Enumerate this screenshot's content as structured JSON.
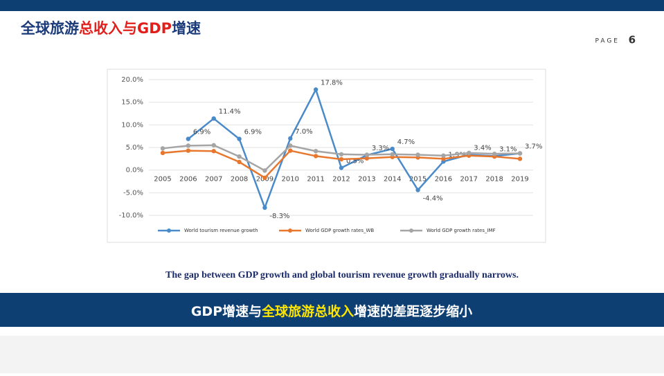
{
  "slide": {
    "title": [
      {
        "text": "全球旅游",
        "color": "#1a3a7a"
      },
      {
        "text": "总收入与GDP",
        "color": "#e0201c"
      },
      {
        "text": "增速",
        "color": "#1a3a7a"
      }
    ],
    "page_label": "PAGE",
    "page_number": "6",
    "caption": "The gap between GDP growth and global tourism revenue growth gradually narrows.",
    "banner": [
      {
        "text": "GDP增速与",
        "color": "#ffffff"
      },
      {
        "text": "全球旅游总收入",
        "color": "#ffe600"
      },
      {
        "text": "增速的差距逐步缩小",
        "color": "#ffffff"
      }
    ]
  },
  "chart_data": {
    "type": "line",
    "categories": [
      "2005",
      "2006",
      "2007",
      "2008",
      "2009",
      "2010",
      "2011",
      "2012",
      "2013",
      "2014",
      "2015",
      "2016",
      "2017",
      "2018",
      "2019"
    ],
    "ylim": [
      -10,
      20
    ],
    "yticks": [
      {
        "value": -10,
        "label": "-10.0%"
      },
      {
        "value": -5,
        "label": "-5.0%"
      },
      {
        "value": 0,
        "label": "0.0%"
      },
      {
        "value": 5,
        "label": "5.0%"
      },
      {
        "value": 10,
        "label": "10.0%"
      },
      {
        "value": 15,
        "label": "15.0%"
      },
      {
        "value": 20,
        "label": "20.0%"
      }
    ],
    "grid": true,
    "series": [
      {
        "name": "World tourism revenue growth",
        "color": "#4a8ac9",
        "values": [
          null,
          6.9,
          11.4,
          6.9,
          -8.3,
          7.0,
          17.8,
          0.5,
          3.3,
          4.7,
          -4.4,
          1.9,
          3.4,
          3.1,
          3.7
        ],
        "value_labels": [
          null,
          "6.9%",
          "11.4%",
          "6.9%",
          "-8.3%",
          "7.0%",
          "17.8%",
          "0.5%",
          "3.3%",
          "4.7%",
          "-4.4%",
          "1.9%",
          "3.4%",
          "3.1%",
          "3.7%"
        ]
      },
      {
        "name": "World GDP growth rates_WB",
        "color": "#e8772e",
        "values": [
          3.8,
          4.3,
          4.2,
          1.8,
          -1.7,
          4.3,
          3.1,
          2.4,
          2.6,
          2.9,
          2.8,
          2.5,
          3.2,
          3.0,
          2.5
        ]
      },
      {
        "name": "World GDP growth rates_IMF",
        "color": "#a5a5a5",
        "values": [
          4.8,
          5.4,
          5.5,
          3.0,
          -0.1,
          5.4,
          4.2,
          3.5,
          3.4,
          3.5,
          3.4,
          3.2,
          3.8,
          3.6,
          3.7
        ]
      }
    ]
  }
}
